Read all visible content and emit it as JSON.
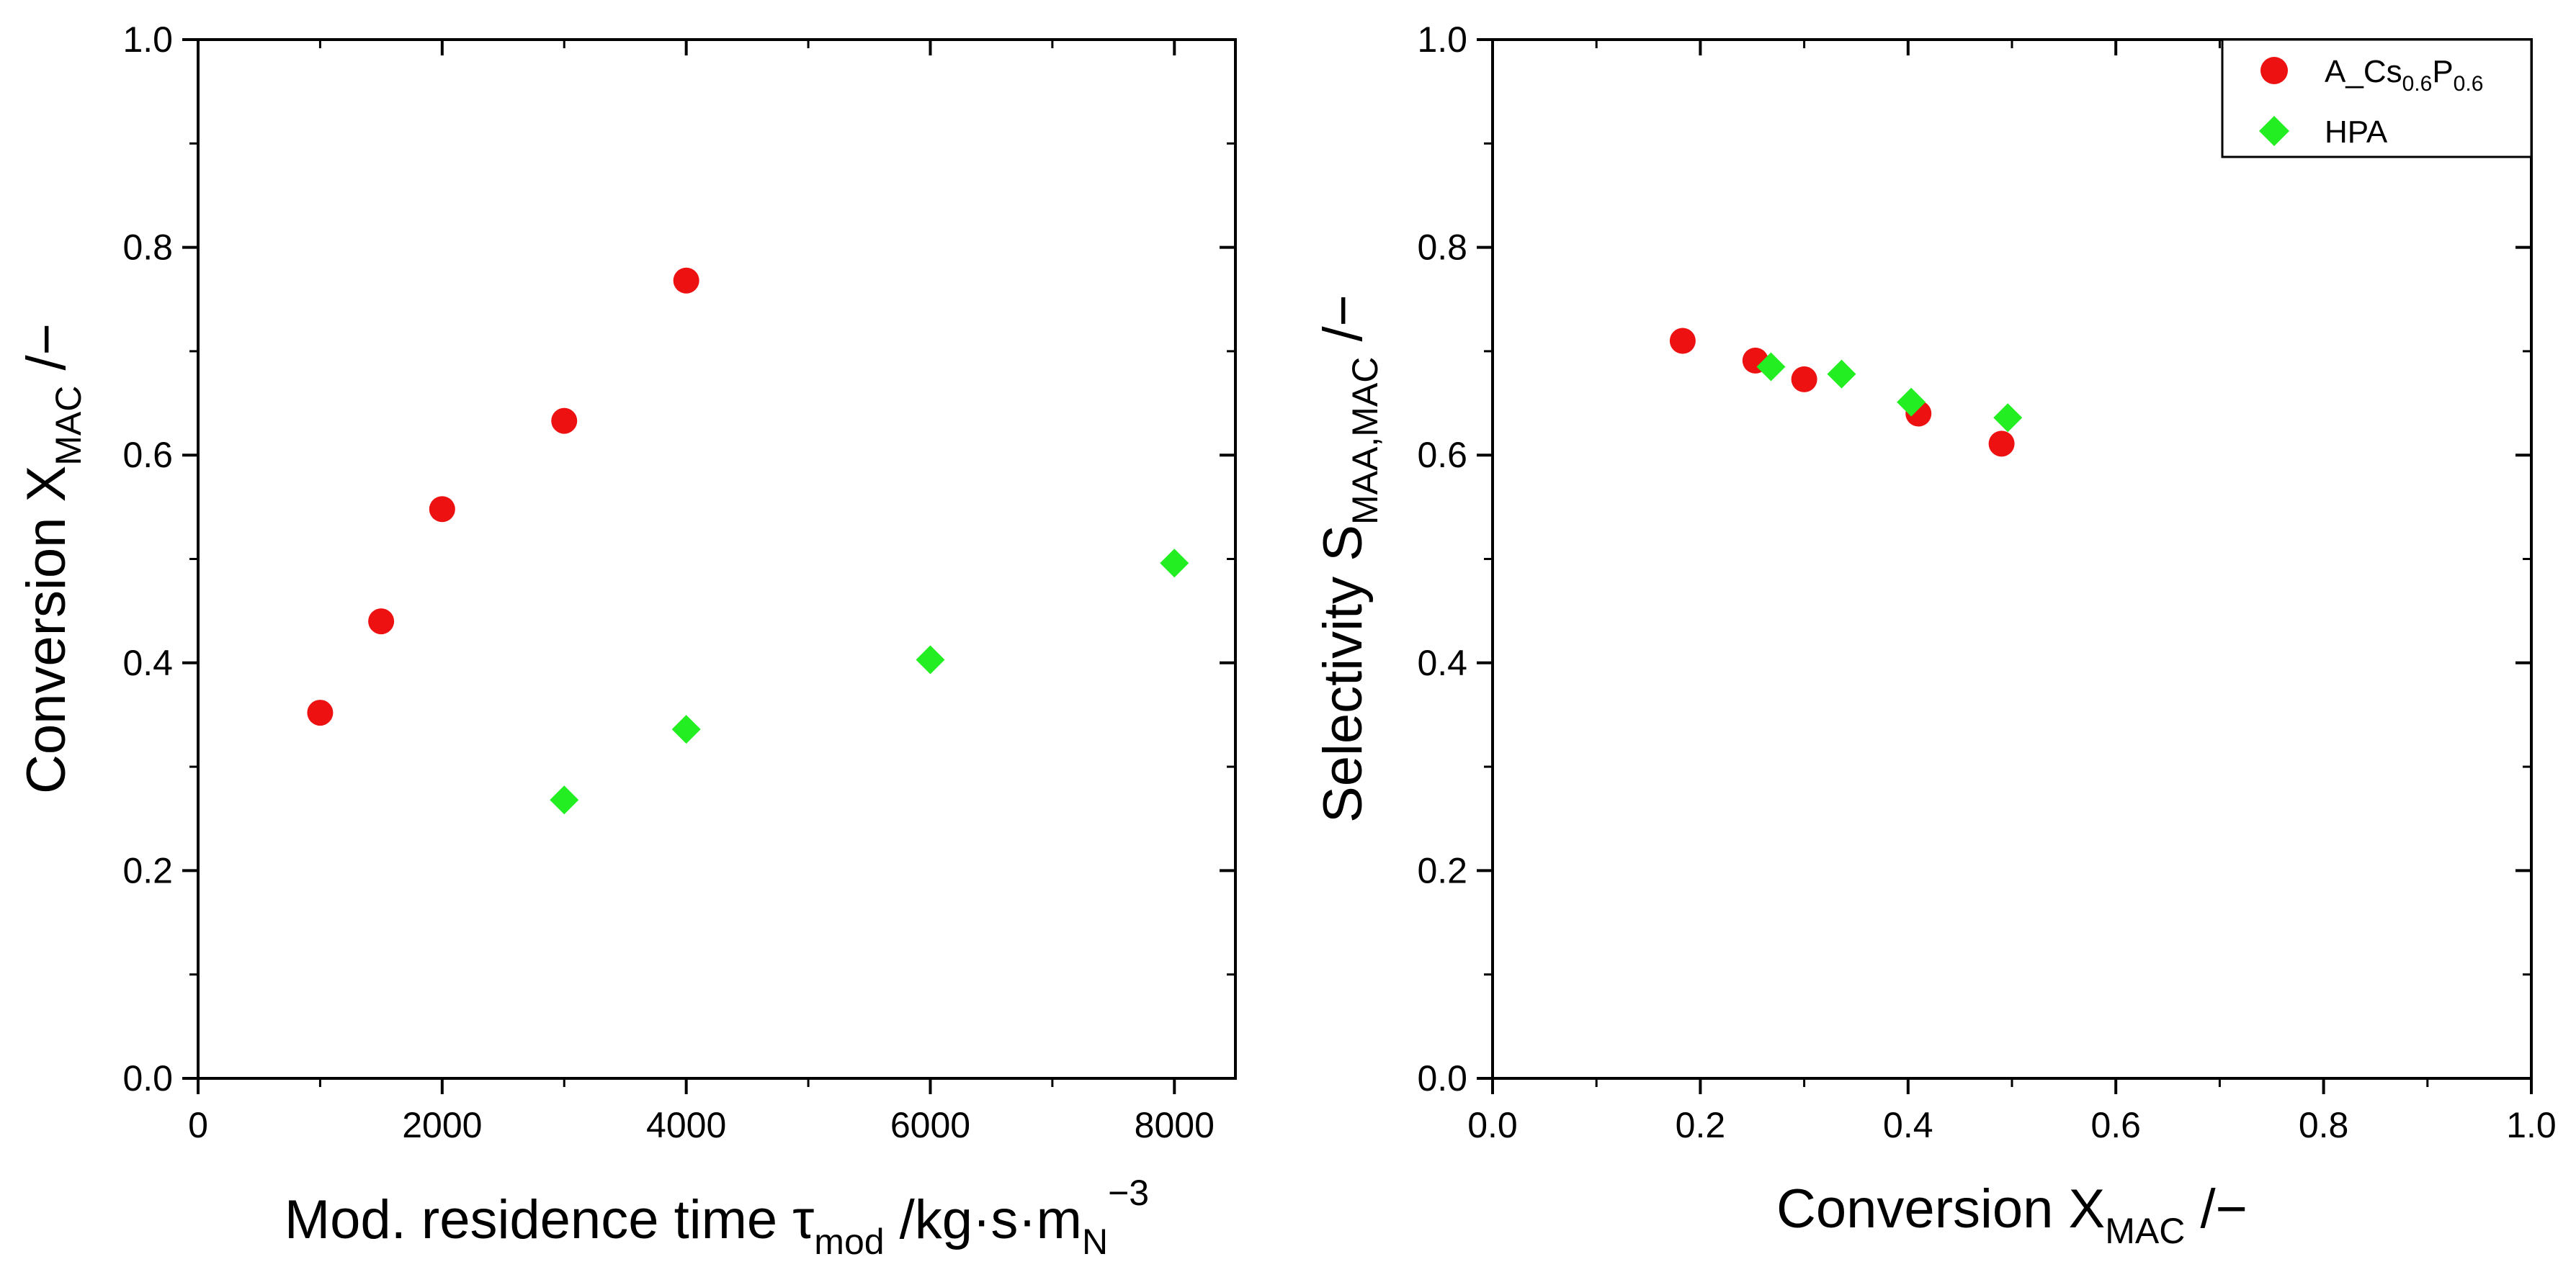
{
  "chart_data": [
    {
      "type": "scatter",
      "xlim": [
        0,
        8500
      ],
      "ylim": [
        0.0,
        1.0
      ],
      "xticks": [
        0,
        2000,
        4000,
        6000,
        8000
      ],
      "xtick_labels": [
        "0",
        "2000",
        "4000",
        "6000",
        "8000"
      ],
      "yticks": [
        0.0,
        0.2,
        0.4,
        0.6,
        0.8,
        1.0
      ],
      "ytick_labels": [
        "0.0",
        "0.2",
        "0.4",
        "0.6",
        "0.8",
        "1.0"
      ],
      "xlabel": {
        "main": "Mod. residence time τ",
        "sub1": "mod",
        "mid": " /kg·s·m",
        "sub2": "N",
        "sup": "−3"
      },
      "ylabel": {
        "main": "Conversion X",
        "sub": "MAC",
        "tail": " /−"
      },
      "series": [
        {
          "name": "A_Cs0.6P0.6",
          "marker": "circle",
          "color": "#ee1111",
          "x": [
            1000,
            1500,
            2000,
            3000,
            4000
          ],
          "y": [
            0.352,
            0.44,
            0.548,
            0.633,
            0.768
          ]
        },
        {
          "name": "HPA",
          "marker": "diamond",
          "color": "#22ee22",
          "x": [
            3000,
            4000,
            6000,
            8000
          ],
          "y": [
            0.268,
            0.336,
            0.403,
            0.496
          ]
        }
      ]
    },
    {
      "type": "scatter",
      "xlim": [
        0.0,
        1.0
      ],
      "ylim": [
        0.0,
        1.0
      ],
      "xticks": [
        0.0,
        0.2,
        0.4,
        0.6,
        0.8,
        1.0
      ],
      "xtick_labels": [
        "0.0",
        "0.2",
        "0.4",
        "0.6",
        "0.8",
        "1.0"
      ],
      "yticks": [
        0.0,
        0.2,
        0.4,
        0.6,
        0.8,
        1.0
      ],
      "ytick_labels": [
        "0.0",
        "0.2",
        "0.4",
        "0.6",
        "0.8",
        "1.0"
      ],
      "xlabel": {
        "main": "Conversion X",
        "sub": "MAC",
        "tail": " /−"
      },
      "ylabel": {
        "main": "Selectivity S",
        "sub": "MAA,MAC",
        "tail": " /−"
      },
      "legend": {
        "position": "top-right",
        "entries": [
          {
            "main": "A_Cs",
            "sub1": "0.6",
            "mid": "P",
            "sub2": "0.6",
            "marker": "circle",
            "color": "#ee1111"
          },
          {
            "main": "HPA",
            "marker": "diamond",
            "color": "#22ee22"
          }
        ]
      },
      "series": [
        {
          "name": "A_Cs0.6P0.6",
          "marker": "circle",
          "color": "#ee1111",
          "x": [
            0.183,
            0.253,
            0.3,
            0.41,
            0.49
          ],
          "y": [
            0.71,
            0.691,
            0.673,
            0.64,
            0.611
          ]
        },
        {
          "name": "HPA",
          "marker": "diamond",
          "color": "#22ee22",
          "x": [
            0.268,
            0.336,
            0.403,
            0.496
          ],
          "y": [
            0.685,
            0.678,
            0.651,
            0.636
          ]
        }
      ]
    }
  ]
}
